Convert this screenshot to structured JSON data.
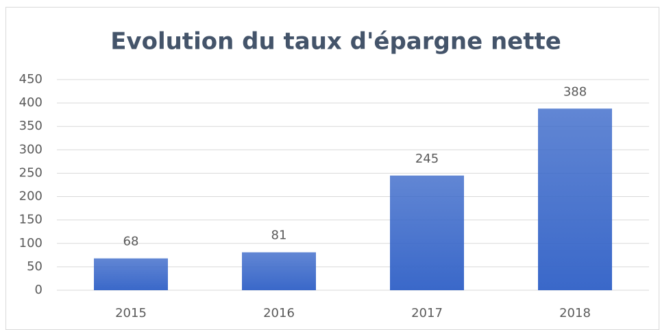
{
  "chart_data": {
    "type": "bar",
    "title": "Evolution du taux d'épargne nette",
    "categories": [
      "2015",
      "2016",
      "2017",
      "2018"
    ],
    "values": [
      68,
      81,
      245,
      388
    ],
    "color": "#3a68c9",
    "ylim": [
      0,
      450
    ],
    "yticks": [
      0,
      50,
      100,
      150,
      200,
      250,
      300,
      350,
      400,
      450
    ],
    "grid": true,
    "data_labels": true
  }
}
